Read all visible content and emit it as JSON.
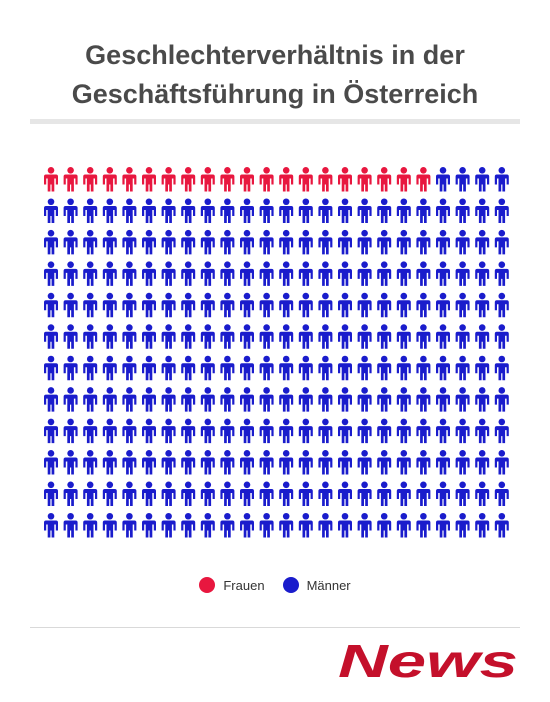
{
  "header": {
    "title_line1": "Geschlechterverhältnis in der",
    "title_line2": "Geschäftsführung in Österreich"
  },
  "chart_data": {
    "type": "waffle",
    "rows": 12,
    "columns": 24,
    "series": [
      {
        "name": "Frauen",
        "count": 20,
        "color": "#e8173f"
      },
      {
        "name": "Männer",
        "count": 268,
        "color": "#1a1ccc"
      }
    ],
    "legend_position": "bottom-center"
  },
  "legend": {
    "items": [
      {
        "label": "Frauen",
        "color": "#e8173f"
      },
      {
        "label": "Männer",
        "color": "#1a1ccc"
      }
    ]
  },
  "brand": {
    "logo_text": "News",
    "color": "#c4102b"
  }
}
